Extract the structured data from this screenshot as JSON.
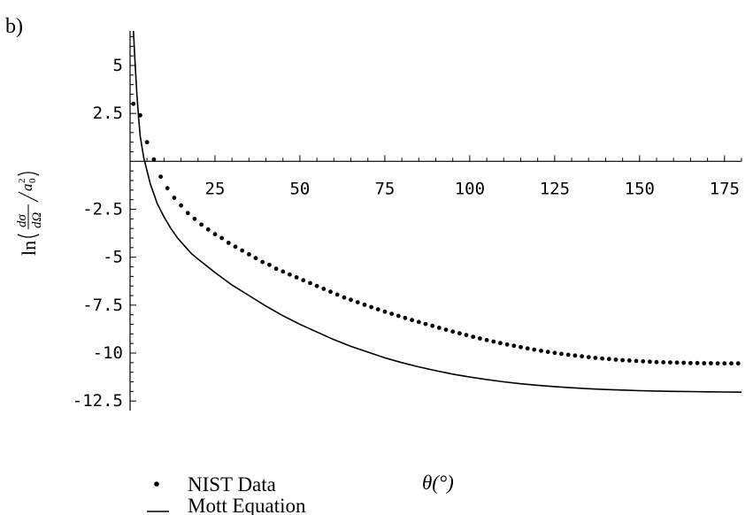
{
  "panel_label": "b)",
  "chart_data": {
    "type": "scatter",
    "title": "",
    "xlabel": "θ(°)",
    "ylabel": "ln(dσ/dΩ / a0²)",
    "ylabel_parts": {
      "fn": "ln",
      "num": "dσ",
      "den": "dΩ",
      "base": "a",
      "sup": "2",
      "sub": "0"
    },
    "xlim": [
      0,
      180
    ],
    "ylim": [
      -13,
      6.8
    ],
    "xticks": [
      25,
      50,
      75,
      100,
      125,
      150,
      175
    ],
    "xtick_labels": [
      "25",
      "50",
      "75",
      "100",
      "125",
      "150",
      "175"
    ],
    "yticks": [
      5,
      2.5,
      -2.5,
      -5,
      -7.5,
      -10,
      -12.5
    ],
    "ytick_labels": [
      "5",
      "2.5",
      "-2.5",
      "-5",
      "-7.5",
      "-10",
      "-12.5"
    ],
    "grid": false,
    "legend": "bottom-left",
    "series": [
      {
        "name": "NIST Data",
        "kind": "points",
        "x": [
          1,
          3,
          5,
          7,
          9,
          11,
          13,
          15,
          17,
          19,
          21,
          23,
          25,
          27,
          29,
          31,
          33,
          35,
          37,
          39,
          41,
          43,
          45,
          47,
          49,
          51,
          53,
          55,
          57,
          59,
          61,
          63,
          65,
          67,
          69,
          71,
          73,
          75,
          77,
          79,
          81,
          83,
          85,
          87,
          89,
          91,
          93,
          95,
          97,
          99,
          101,
          103,
          105,
          107,
          109,
          111,
          113,
          115,
          117,
          119,
          121,
          123,
          125,
          127,
          129,
          131,
          133,
          135,
          137,
          139,
          141,
          143,
          145,
          147,
          149,
          151,
          153,
          155,
          157,
          159,
          161,
          163,
          165,
          167,
          169,
          171,
          173,
          175,
          177,
          179
        ],
        "y": [
          3.0,
          2.4,
          1.0,
          0.1,
          -0.8,
          -1.4,
          -1.9,
          -2.3,
          -2.7,
          -3.0,
          -3.3,
          -3.55,
          -3.8,
          -4.0,
          -4.25,
          -4.45,
          -4.65,
          -4.85,
          -5.05,
          -5.25,
          -5.4,
          -5.6,
          -5.75,
          -5.9,
          -6.05,
          -6.2,
          -6.35,
          -6.5,
          -6.65,
          -6.8,
          -6.95,
          -7.1,
          -7.22,
          -7.35,
          -7.48,
          -7.6,
          -7.72,
          -7.84,
          -7.95,
          -8.06,
          -8.17,
          -8.28,
          -8.38,
          -8.48,
          -8.58,
          -8.68,
          -8.78,
          -8.88,
          -8.97,
          -9.06,
          -9.15,
          -9.24,
          -9.32,
          -9.4,
          -9.48,
          -9.55,
          -9.62,
          -9.69,
          -9.76,
          -9.82,
          -9.88,
          -9.94,
          -9.99,
          -10.04,
          -10.09,
          -10.13,
          -10.17,
          -10.21,
          -10.25,
          -10.28,
          -10.31,
          -10.34,
          -10.37,
          -10.39,
          -10.41,
          -10.43,
          -10.45,
          -10.47,
          -10.48,
          -10.49,
          -10.5,
          -10.51,
          -10.52,
          -10.52,
          -10.53,
          -10.53,
          -10.54,
          -10.54,
          -10.54,
          -10.54
        ]
      },
      {
        "name": "Mott Equation",
        "kind": "line",
        "x": [
          1,
          1.5,
          2,
          2.5,
          3,
          4,
          5,
          6,
          7,
          8,
          10,
          12,
          14,
          16,
          18,
          20,
          25,
          30,
          35,
          40,
          45,
          50,
          55,
          60,
          65,
          70,
          75,
          80,
          85,
          90,
          95,
          100,
          105,
          110,
          115,
          120,
          125,
          130,
          135,
          140,
          145,
          150,
          155,
          160,
          165,
          170,
          175,
          180
        ],
        "y": [
          6.8,
          5.0,
          3.5,
          2.3,
          1.3,
          0.2,
          -0.5,
          -1.2,
          -1.7,
          -2.2,
          -2.9,
          -3.5,
          -4.0,
          -4.4,
          -4.8,
          -5.1,
          -5.8,
          -6.45,
          -7.0,
          -7.55,
          -8.05,
          -8.5,
          -8.9,
          -9.3,
          -9.65,
          -9.95,
          -10.25,
          -10.5,
          -10.72,
          -10.92,
          -11.1,
          -11.25,
          -11.38,
          -11.5,
          -11.6,
          -11.68,
          -11.75,
          -11.81,
          -11.86,
          -11.9,
          -11.93,
          -11.96,
          -11.98,
          -12.0,
          -12.01,
          -12.02,
          -12.03,
          -12.04
        ]
      }
    ]
  }
}
